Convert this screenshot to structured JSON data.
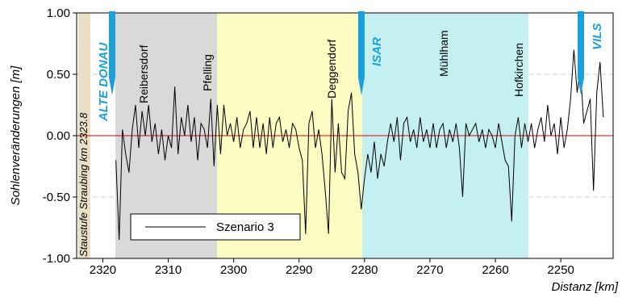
{
  "chart_data": {
    "type": "line",
    "y_label": "Sohlenveränderungen [m]",
    "x_label": "Distanz [km]",
    "xlim": [
      2324,
      2242
    ],
    "ylim": [
      -1,
      1
    ],
    "xticks": [
      2320,
      2310,
      2300,
      2290,
      2280,
      2270,
      2260,
      2250
    ],
    "yticks": [
      {
        "value": 1,
        "label": "1.00"
      },
      {
        "value": 0.5,
        "label": "0.50"
      },
      {
        "value": 0,
        "label": "0.00"
      },
      {
        "value": -0.5,
        "label": "-0.50"
      },
      {
        "value": -1,
        "label": "-1.00"
      }
    ],
    "grid": true,
    "reference_line": {
      "value": 0,
      "color": "#e00000"
    },
    "annotations": [
      "Staustufe Straubing km 2323.8",
      "ALTE DONAU",
      "Reibersdorf",
      "Pfelling",
      "Deggendorf",
      "ISAR",
      "Mühlham",
      "Hofkirchen",
      "VILS"
    ],
    "legend": "lower left",
    "x": [
      2318,
      2317.5,
      2317,
      2316.5,
      2316,
      2315.5,
      2315,
      2314.5,
      2314,
      2313.5,
      2313,
      2312.5,
      2312,
      2311.5,
      2311,
      2310.5,
      2310,
      2309.5,
      2309,
      2308.5,
      2308,
      2307.5,
      2307,
      2306.5,
      2306,
      2305.5,
      2305,
      2304.5,
      2304,
      2303.5,
      2303,
      2302.5,
      2302,
      2301.5,
      2301,
      2300.5,
      2300,
      2299.5,
      2299,
      2298.5,
      2298,
      2297.5,
      2297,
      2296.5,
      2296,
      2295.5,
      2295,
      2294.5,
      2294,
      2293.5,
      2293,
      2292.5,
      2292,
      2291.5,
      2291,
      2290.5,
      2290,
      2289.5,
      2289,
      2288.5,
      2288,
      2287.5,
      2287,
      2286.5,
      2286,
      2285.5,
      2285,
      2284.5,
      2284,
      2283.5,
      2283,
      2282.5,
      2282,
      2281.5,
      2281,
      2280.5,
      2280,
      2279.5,
      2279,
      2278.5,
      2278,
      2277.5,
      2277,
      2276.5,
      2276,
      2275.5,
      2275,
      2274.5,
      2274,
      2273.5,
      2273,
      2272.5,
      2272,
      2271.5,
      2271,
      2270.5,
      2270,
      2269.5,
      2269,
      2268.5,
      2268,
      2267.5,
      2267,
      2266.5,
      2266,
      2265.5,
      2265,
      2264.5,
      2264,
      2263.5,
      2263,
      2262.5,
      2262,
      2261.5,
      2261,
      2260.5,
      2260,
      2259.5,
      2259,
      2258.5,
      2258,
      2257.5,
      2257,
      2256.5,
      2256,
      2255.5,
      2255,
      2254.5,
      2254,
      2253.5,
      2253,
      2252.5,
      2252,
      2251.5,
      2251,
      2250.5,
      2250,
      2249.5,
      2249,
      2248.5,
      2248,
      2247.5,
      2247,
      2246.5,
      2246,
      2245.5,
      2245,
      2244.5,
      2244,
      2243.5
    ],
    "series": [
      {
        "name": "Szenario 3",
        "color": "#000000",
        "values": [
          -0.2,
          -0.85,
          0.05,
          -0.15,
          -0.3,
          0.05,
          0.25,
          -0.1,
          0.2,
          0.0,
          0.25,
          -0.05,
          0.1,
          -0.15,
          0.05,
          -0.2,
          0.0,
          -0.1,
          0.4,
          -0.15,
          0.15,
          0.0,
          0.25,
          -0.05,
          0.15,
          -0.2,
          0.1,
          0.05,
          -0.1,
          0.3,
          -0.25,
          0.25,
          -0.15,
          0.25,
          0.0,
          0.1,
          -0.05,
          0.15,
          -0.1,
          0.05,
          0.1,
          0.2,
          -0.1,
          0.15,
          -0.1,
          0.1,
          -0.15,
          0.15,
          -0.1,
          0.1,
          0.15,
          -0.05,
          0.05,
          -0.1,
          0.1,
          0.05,
          -0.1,
          -0.2,
          -0.8,
          0.1,
          0.2,
          -0.1,
          0.05,
          -0.15,
          -0.45,
          -0.8,
          0.3,
          -0.3,
          0.1,
          -0.3,
          -0.35,
          0.2,
          0.35,
          -0.15,
          -0.3,
          -0.6,
          -0.35,
          -0.15,
          -0.3,
          -0.05,
          -0.35,
          -0.15,
          -0.25,
          -0.05,
          0.1,
          -0.05,
          0.15,
          -0.2,
          0.1,
          0.15,
          -0.05,
          0.05,
          -0.1,
          0.15,
          -0.05,
          0.05,
          -0.1,
          0.1,
          -0.1,
          0.05,
          0.1,
          -0.1,
          0.05,
          -0.05,
          0.1,
          -0.1,
          -0.5,
          0.1,
          0.0,
          0.05,
          0.1,
          -0.05,
          0.05,
          -0.1,
          0.05,
          0.0,
          -0.1,
          0.1,
          -0.05,
          -0.2,
          -0.25,
          -0.7,
          0.0,
          0.15,
          -0.1,
          0.1,
          -0.05,
          0.1,
          -0.1,
          0.05,
          0.15,
          -0.05,
          0.25,
          0.0,
          0.1,
          -0.15,
          0.15,
          -0.1,
          0.05,
          0.3,
          0.7,
          0.35,
          0.55,
          0.1,
          0.2,
          0.3,
          -0.45,
          0.35,
          0.6,
          0.15
        ]
      }
    ]
  }
}
